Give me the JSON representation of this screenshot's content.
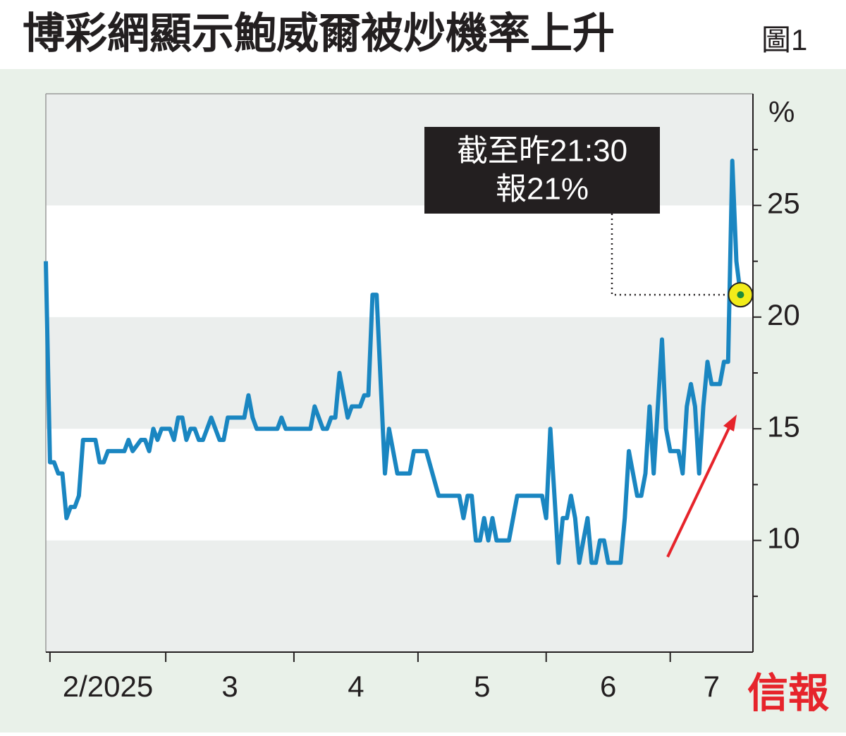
{
  "chart_data": {
    "type": "line",
    "title": "博彩網顯示鮑威爾被炒機率上升",
    "figure_label": "圖1",
    "ylabel": "%",
    "logo": "信報",
    "annotation": [
      "截至昨21:30",
      "報21%"
    ],
    "x": [
      -1,
      0,
      1,
      2,
      3,
      4,
      5,
      6,
      7,
      8,
      11,
      12,
      13,
      14,
      18,
      19,
      20,
      22,
      23,
      24,
      25,
      26,
      27,
      29,
      30,
      31,
      32,
      33,
      34,
      35,
      36,
      37,
      39,
      41,
      42,
      43,
      47,
      48,
      49,
      50,
      55,
      56,
      57,
      63,
      64,
      66,
      67,
      68,
      69,
      70,
      71,
      72,
      73,
      75,
      76,
      77,
      78,
      79,
      81,
      82,
      83,
      84,
      87,
      88,
      91,
      94,
      99,
      100,
      101,
      102,
      103,
      104,
      105,
      106,
      107,
      108,
      111,
      113,
      119,
      120,
      121,
      123,
      124,
      125,
      126,
      127,
      128,
      130,
      131,
      132,
      133,
      134,
      135,
      138,
      139,
      140,
      142,
      143,
      144,
      145,
      146,
      147,
      148,
      149,
      150,
      152,
      153,
      154,
      155,
      156,
      157,
      158,
      159,
      160,
      162,
      163,
      164,
      165,
      166,
      167
    ],
    "series": [
      {
        "name": "被炒機率",
        "color": "#1a86c1",
        "values": [
          22.5,
          13.5,
          13.5,
          13,
          13,
          11,
          11.5,
          11.5,
          12,
          14.5,
          14.5,
          13.5,
          13.5,
          14,
          14,
          14.5,
          14,
          14.5,
          14.5,
          14,
          15,
          14.5,
          15,
          15,
          14.5,
          15.5,
          15.5,
          14.5,
          15,
          15,
          14.5,
          14.5,
          15.5,
          14.5,
          14.5,
          15.5,
          15.5,
          16.5,
          15.5,
          15,
          15,
          15.5,
          15,
          15,
          16,
          15,
          15,
          15.5,
          15.5,
          17.5,
          16.5,
          15.5,
          16,
          16,
          16.5,
          16.5,
          21,
          21,
          13,
          15,
          14,
          13,
          13,
          14,
          14,
          12,
          12,
          11,
          12,
          12,
          10,
          10,
          11,
          10,
          11,
          10,
          10,
          12,
          12,
          11,
          15,
          9,
          11,
          11,
          12,
          11,
          9,
          11,
          9,
          9,
          10,
          10,
          9,
          9,
          11,
          14,
          12,
          12,
          13,
          16,
          13,
          16,
          19,
          15,
          14,
          14,
          13,
          16,
          17,
          16,
          13,
          16,
          18,
          17,
          17,
          18,
          18,
          27,
          22.5,
          21
        ]
      }
    ],
    "xlim": [
      -1,
      170
    ],
    "xticks": [
      0,
      28,
      59,
      89,
      120,
      150
    ],
    "x_labels": [
      "2/2025",
      "3",
      "4",
      "5",
      "6",
      "7"
    ],
    "ylim": [
      5,
      30
    ],
    "yticks": [
      10,
      15,
      20,
      25
    ],
    "yticks_minor": [
      7.5,
      12.5,
      17.5,
      22.5,
      27.5
    ],
    "bands": true
  }
}
